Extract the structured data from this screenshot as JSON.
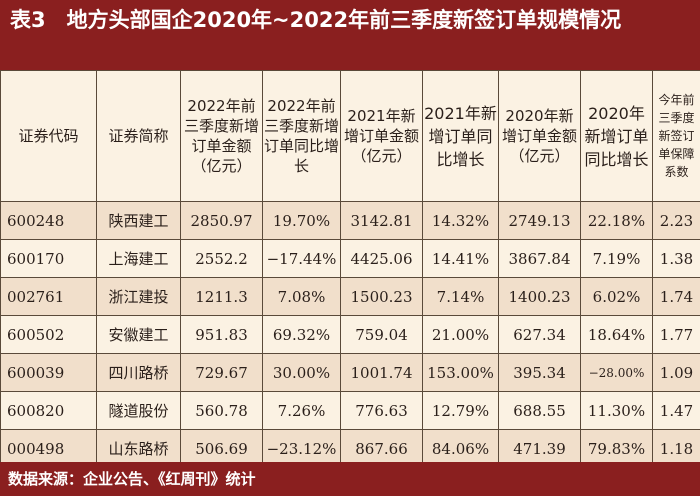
{
  "title": "表3　地方头部国企2020年~2022年前三季度新签订单规模情况",
  "headers": [
    "证券代码",
    "证券简称",
    "2022年前三季度新增订单金额（亿元）",
    "2022年前三季度新增订单同比增长",
    "2021年新增订单金额（亿元）",
    "2021年新增订单同比增长",
    "2020年新增订单金额（亿元）",
    "2020年新增订单同比增长",
    "今年前三季度新签订单保障系数"
  ],
  "rows": [
    [
      "600248",
      "陕西建工",
      "2850.97",
      "19.70%",
      "3142.81",
      "14.32%",
      "2749.13",
      "22.18%",
      "2.23"
    ],
    [
      "600170",
      "上海建工",
      "2552.2",
      "−17.44%",
      "4425.06",
      "14.41%",
      "3867.84",
      "7.19%",
      "1.38"
    ],
    [
      "002761",
      "浙江建投",
      "1211.3",
      "7.08%",
      "1500.23",
      "7.14%",
      "1400.23",
      "6.02%",
      "1.74"
    ],
    [
      "600502",
      "安徽建工",
      "951.83",
      "69.32%",
      "759.04",
      "21.00%",
      "627.34",
      "18.64%",
      "1.77"
    ],
    [
      "600039",
      "四川路桥",
      "729.67",
      "30.00%",
      "1001.74",
      "153.00%",
      "395.34",
      "−28.00%",
      "1.09"
    ],
    [
      "600820",
      "隧道股份",
      "560.78",
      "7.26%",
      "776.63",
      "12.79%",
      "688.55",
      "11.30%",
      "1.47"
    ],
    [
      "000498",
      "山东路桥",
      "506.69",
      "−23.12%",
      "867.66",
      "84.06%",
      "471.39",
      "79.83%",
      "1.18"
    ]
  ],
  "footer": "数据来源：企业公告、《红周刊》统计"
}
